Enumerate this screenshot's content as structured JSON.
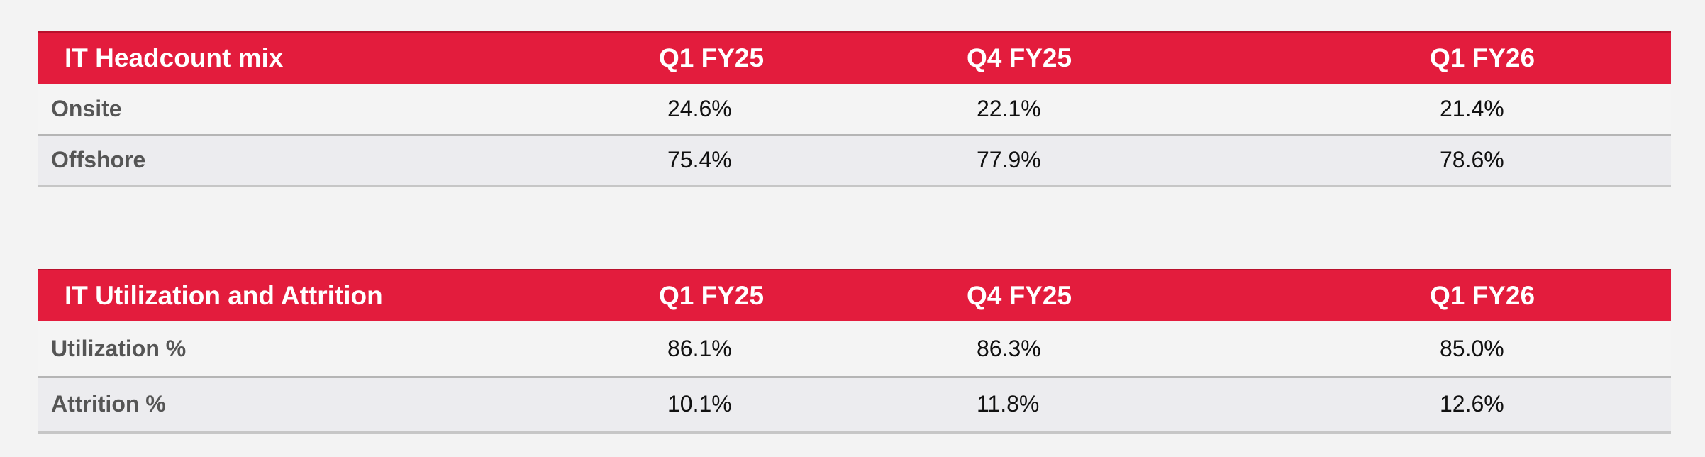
{
  "headcount": {
    "title": "IT Headcount mix",
    "columns": [
      "Q1 FY25",
      "Q4 FY25",
      "Q1 FY26"
    ],
    "rows": [
      {
        "label": "Onsite",
        "values": [
          "24.6%",
          "22.1%",
          "21.4%"
        ]
      },
      {
        "label": "Offshore",
        "values": [
          "75.4%",
          "77.9%",
          "78.6%"
        ]
      }
    ]
  },
  "utilization": {
    "title": "IT Utilization and Attrition",
    "columns": [
      "Q1 FY25",
      "Q4 FY25",
      "Q1 FY26"
    ],
    "rows": [
      {
        "label": "Utilization %",
        "values": [
          "86.1%",
          "86.3%",
          "85.0%"
        ]
      },
      {
        "label": "Attrition %",
        "values": [
          "10.1%",
          "11.8%",
          "12.6%"
        ]
      }
    ]
  },
  "colors": {
    "header_bg": "#e31c3d",
    "header_text": "#ffffff",
    "row_label": "#555555",
    "page_bg": "#f3f3f3"
  }
}
